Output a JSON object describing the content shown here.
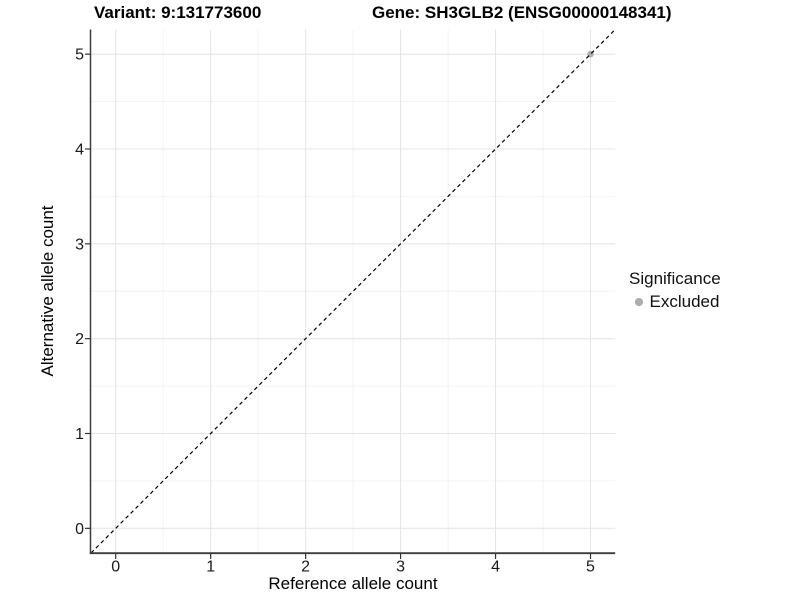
{
  "chart_data": {
    "type": "scatter",
    "titles": {
      "left": "Variant: 9:131773600",
      "right": "Gene: SH3GLB2 (ENSG00000148341)"
    },
    "xlabel": "Reference allele count",
    "ylabel": "Alternative allele count",
    "xlim": [
      -0.26,
      5.26
    ],
    "ylim": [
      -0.26,
      5.26
    ],
    "x_ticks": [
      0,
      1,
      2,
      3,
      4,
      5
    ],
    "y_ticks": [
      0,
      1,
      2,
      3,
      4,
      5
    ],
    "x_minor_ticks": [
      0.5,
      1.5,
      2.5,
      3.5,
      4.5
    ],
    "y_minor_ticks": [
      0.5,
      1.5,
      2.5,
      3.5,
      4.5
    ],
    "grid": {
      "major": true,
      "minor": true
    },
    "reference_line": {
      "type": "abline",
      "slope": 1,
      "intercept": 0,
      "linetype": "dashed",
      "color": "#000000"
    },
    "series": [
      {
        "name": "Excluded",
        "color": "#adadad",
        "points": [
          {
            "x": 5,
            "y": 5
          }
        ]
      }
    ],
    "legend": {
      "title": "Significance",
      "position": "right",
      "items": [
        {
          "label": "Excluded",
          "color": "#adadad",
          "shape": "circle"
        }
      ]
    }
  }
}
